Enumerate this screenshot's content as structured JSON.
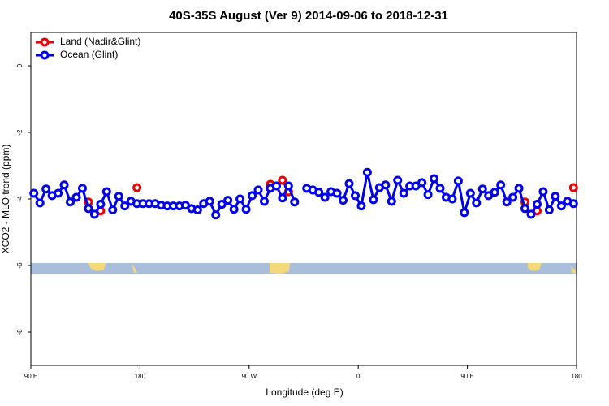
{
  "chart_data": {
    "type": "line",
    "title": "40S-35S August (Ver 9)   2014-09-06 to 2018-12-31",
    "x_label": "Longitude (deg E)",
    "y_label": "XCO2 - MLO trend (ppm)",
    "xlim": [
      90,
      540
    ],
    "ylim": [
      -9,
      1
    ],
    "xticks": [
      {
        "value": 90,
        "label": "90 E"
      },
      180,
      {
        "value": 270,
        "label": "90 W"
      },
      {
        "value": 360,
        "label": "0"
      },
      {
        "value": 450,
        "label": "90 E"
      },
      {
        "value": 540,
        "label": "180"
      }
    ],
    "yticks": [
      -8,
      -6,
      -4,
      -2,
      0
    ],
    "legend": "upper left",
    "x": [
      92.5,
      97.5,
      102.5,
      107.5,
      112.5,
      117.5,
      122.5,
      127.5,
      132.5,
      137.5,
      142.5,
      147.5,
      152.5,
      157.5,
      162.5,
      167.5,
      172.5,
      177.5,
      182.5,
      187.5,
      192.5,
      197.5,
      202.5,
      207.5,
      212.5,
      217.5,
      222.5,
      227.5,
      232.5,
      237.5,
      242.5,
      247.5,
      252.5,
      257.5,
      262.5,
      267.5,
      272.5,
      277.5,
      282.5,
      287.5,
      292.5,
      297.5,
      302.5,
      307.5,
      312.5,
      317.5,
      322.5,
      327.5,
      332.5,
      337.5,
      342.5,
      347.5,
      352.5,
      357.5,
      362.5,
      367.5,
      372.5,
      377.5,
      382.5,
      387.5,
      392.5,
      397.5,
      402.5,
      407.5,
      412.5,
      417.5,
      422.5,
      427.5,
      432.5,
      437.5,
      442.5,
      447.5,
      452.5,
      457.5,
      462.5,
      467.5,
      472.5,
      477.5,
      482.5,
      487.5,
      492.5,
      497.5,
      502.5,
      507.5,
      512.5,
      517.5,
      522.5,
      527.5,
      532.5,
      537.5
    ],
    "series": [
      {
        "name": "Land (Nadir&Glint)",
        "color": "#ee0000",
        "values": [
          null,
          null,
          null,
          null,
          null,
          null,
          null,
          null,
          null,
          -4.09,
          null,
          -4.36,
          null,
          null,
          null,
          null,
          null,
          -3.66,
          null,
          null,
          null,
          null,
          null,
          null,
          null,
          null,
          null,
          null,
          null,
          null,
          null,
          null,
          null,
          null,
          null,
          null,
          null,
          null,
          null,
          -3.56,
          -3.61,
          -3.44,
          -3.78,
          null,
          null,
          null,
          null,
          null,
          null,
          null,
          null,
          null,
          null,
          null,
          null,
          null,
          null,
          null,
          null,
          null,
          null,
          null,
          null,
          null,
          null,
          null,
          null,
          null,
          null,
          null,
          null,
          null,
          null,
          null,
          null,
          null,
          null,
          null,
          null,
          null,
          null,
          -4.09,
          null,
          -4.36,
          null,
          null,
          null,
          null,
          null,
          -3.66
        ]
      },
      {
        "name": "Ocean (Glint)",
        "color": "#0000ee",
        "values": [
          -3.83,
          -4.12,
          -3.7,
          -3.9,
          -3.83,
          -3.58,
          -4.09,
          -3.95,
          -3.68,
          -4.29,
          -4.46,
          -4.16,
          -3.78,
          -4.33,
          -3.92,
          -4.21,
          -4.07,
          -4.14,
          -4.14,
          -4.14,
          -4.14,
          -4.19,
          -4.21,
          -4.21,
          -4.21,
          -4.19,
          -4.29,
          -4.33,
          -4.14,
          -4.07,
          -4.48,
          -4.16,
          -4.04,
          -4.31,
          -4.0,
          -4.31,
          -3.9,
          -3.73,
          -4.07,
          -3.68,
          -3.61,
          -3.97,
          -3.61,
          -4.09,
          null,
          -3.68,
          -3.73,
          -3.8,
          -3.95,
          -3.78,
          -3.83,
          -4.04,
          -3.54,
          -3.9,
          -4.21,
          -3.2,
          -4.02,
          -3.66,
          -3.58,
          -4.07,
          -3.44,
          -3.83,
          -3.61,
          -3.61,
          -3.51,
          -3.87,
          -3.39,
          -3.68,
          -3.95,
          -4.0,
          -3.46,
          -4.41,
          -3.83,
          -4.12,
          -3.7,
          -3.9,
          -3.8,
          -3.58,
          -4.09,
          -3.95,
          -3.68,
          -4.29,
          -4.46,
          -4.16,
          -3.78,
          -4.33,
          -3.92,
          -4.21,
          -4.07,
          -4.14
        ]
      }
    ]
  }
}
